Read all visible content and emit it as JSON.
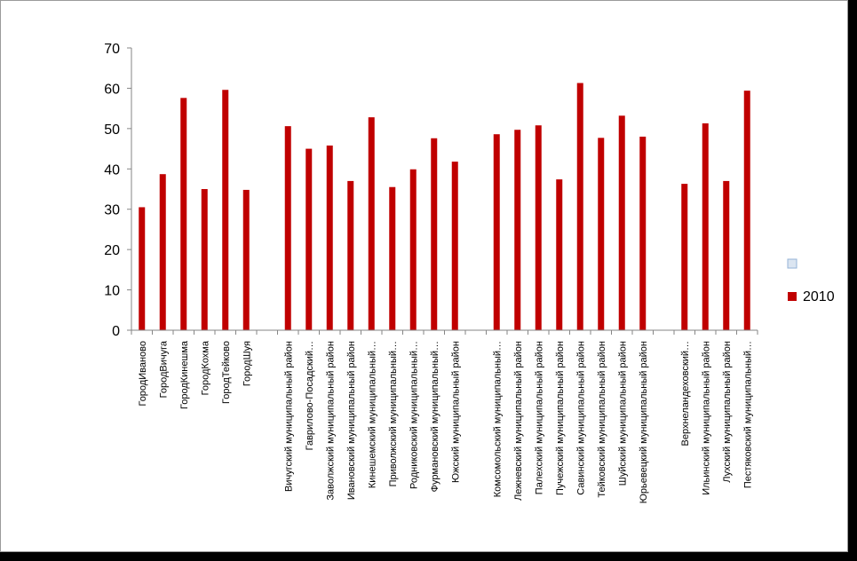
{
  "chart_data": {
    "type": "bar",
    "title": "",
    "xlabel": "",
    "ylabel": "",
    "ylim": [
      0,
      70
    ],
    "yticks": [
      0,
      10,
      20,
      30,
      40,
      50,
      60,
      70
    ],
    "grid": false,
    "legend_position": "right",
    "legend": [
      {
        "label": "",
        "color": "#dbe5f1"
      },
      {
        "label": "2010",
        "color": "#c00000"
      }
    ],
    "categories": [
      "ГородИваново",
      "ГородВичуга",
      "ГородКинешма",
      "ГородКохма",
      "ГородТейково",
      "ГородШуя",
      "",
      "Вичугский муниципальный район",
      "Гаврилово-Посадский…",
      "Заволжский муниципальный район",
      "Ивановский муниципальный район",
      "Кинешемский муниципальный…",
      "Приволжский муниципальный…",
      "Родниковский муниципальный…",
      "Фурмановский муниципальный…",
      "Южский муниципальный район",
      "",
      "Комсомольский муниципальный…",
      "Лежневский муниципальный район",
      "Палехский муниципальный район",
      "Пучежский муниципальный район",
      "Савинский муниципальный район",
      "Тейковский муниципальный район",
      "Шуйский муниципальный район",
      "Юрьевецкий муниципальный район",
      "",
      "Верхнеландеховский…",
      "Ильинский муниципальный район",
      "Лухский муниципальный район",
      "Пестяковский муниципальный…"
    ],
    "series": [
      {
        "name": "2010",
        "color": "#c00000",
        "values": [
          30.5,
          38.7,
          57.6,
          35.0,
          59.6,
          34.8,
          null,
          50.6,
          45.0,
          45.8,
          37.0,
          52.8,
          35.5,
          39.9,
          47.6,
          41.8,
          null,
          48.6,
          49.7,
          50.8,
          37.4,
          61.3,
          47.7,
          53.2,
          48.0,
          null,
          36.3,
          51.3,
          37.0,
          59.4
        ]
      }
    ]
  }
}
